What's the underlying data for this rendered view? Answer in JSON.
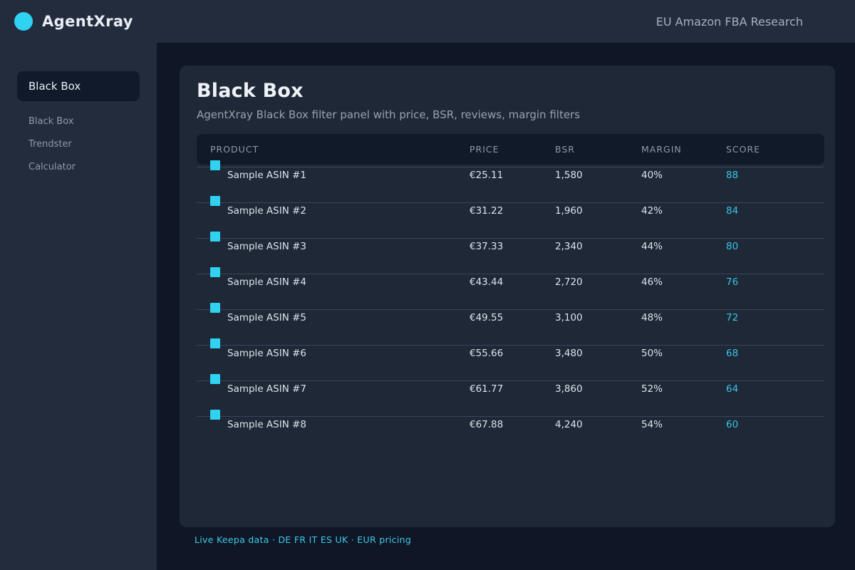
{
  "app": {
    "brand": "AgentXray",
    "header_subtitle": "EU Amazon FBA Research"
  },
  "sidebar": {
    "active": {
      "label": "Black Box"
    },
    "items": [
      {
        "label": "Black Box"
      },
      {
        "label": "Trendster"
      },
      {
        "label": "Calculator"
      }
    ]
  },
  "panel": {
    "title": "Black Box",
    "description": "AgentXray Black Box filter panel with price, BSR, reviews, margin filters",
    "table": {
      "columns": [
        {
          "label": "PRODUCT"
        },
        {
          "label": "PRICE"
        },
        {
          "label": "BSR"
        },
        {
          "label": "MARGIN"
        },
        {
          "label": "SCORE"
        }
      ],
      "rows": [
        {
          "product": "Sample ASIN #1",
          "price": "€25.11",
          "bsr": "1,580",
          "margin": "40%",
          "score": "88"
        },
        {
          "product": "Sample ASIN #2",
          "price": "€31.22",
          "bsr": "1,960",
          "margin": "42%",
          "score": "84"
        },
        {
          "product": "Sample ASIN #3",
          "price": "€37.33",
          "bsr": "2,340",
          "margin": "44%",
          "score": "80"
        },
        {
          "product": "Sample ASIN #4",
          "price": "€43.44",
          "bsr": "2,720",
          "margin": "46%",
          "score": "76"
        },
        {
          "product": "Sample ASIN #5",
          "price": "€49.55",
          "bsr": "3,100",
          "margin": "48%",
          "score": "72"
        },
        {
          "product": "Sample ASIN #6",
          "price": "€55.66",
          "bsr": "3,480",
          "margin": "50%",
          "score": "68"
        },
        {
          "product": "Sample ASIN #7",
          "price": "€61.77",
          "bsr": "3,860",
          "margin": "52%",
          "score": "64"
        },
        {
          "product": "Sample ASIN #8",
          "price": "€67.88",
          "bsr": "4,240",
          "margin": "54%",
          "score": "60"
        }
      ]
    },
    "status_line": "Live Keepa data · DE FR IT ES UK · EUR pricing"
  },
  "colors": {
    "accent_cyan": "#2fd2f0",
    "score_cyan": "#38c6e5",
    "status_cyan": "#3fc9e6",
    "chrome_bg": "#232c3d",
    "canvas_bg": "#0f1726",
    "panel_bg": "#1e2837",
    "table_header_bg": "#111a29"
  }
}
